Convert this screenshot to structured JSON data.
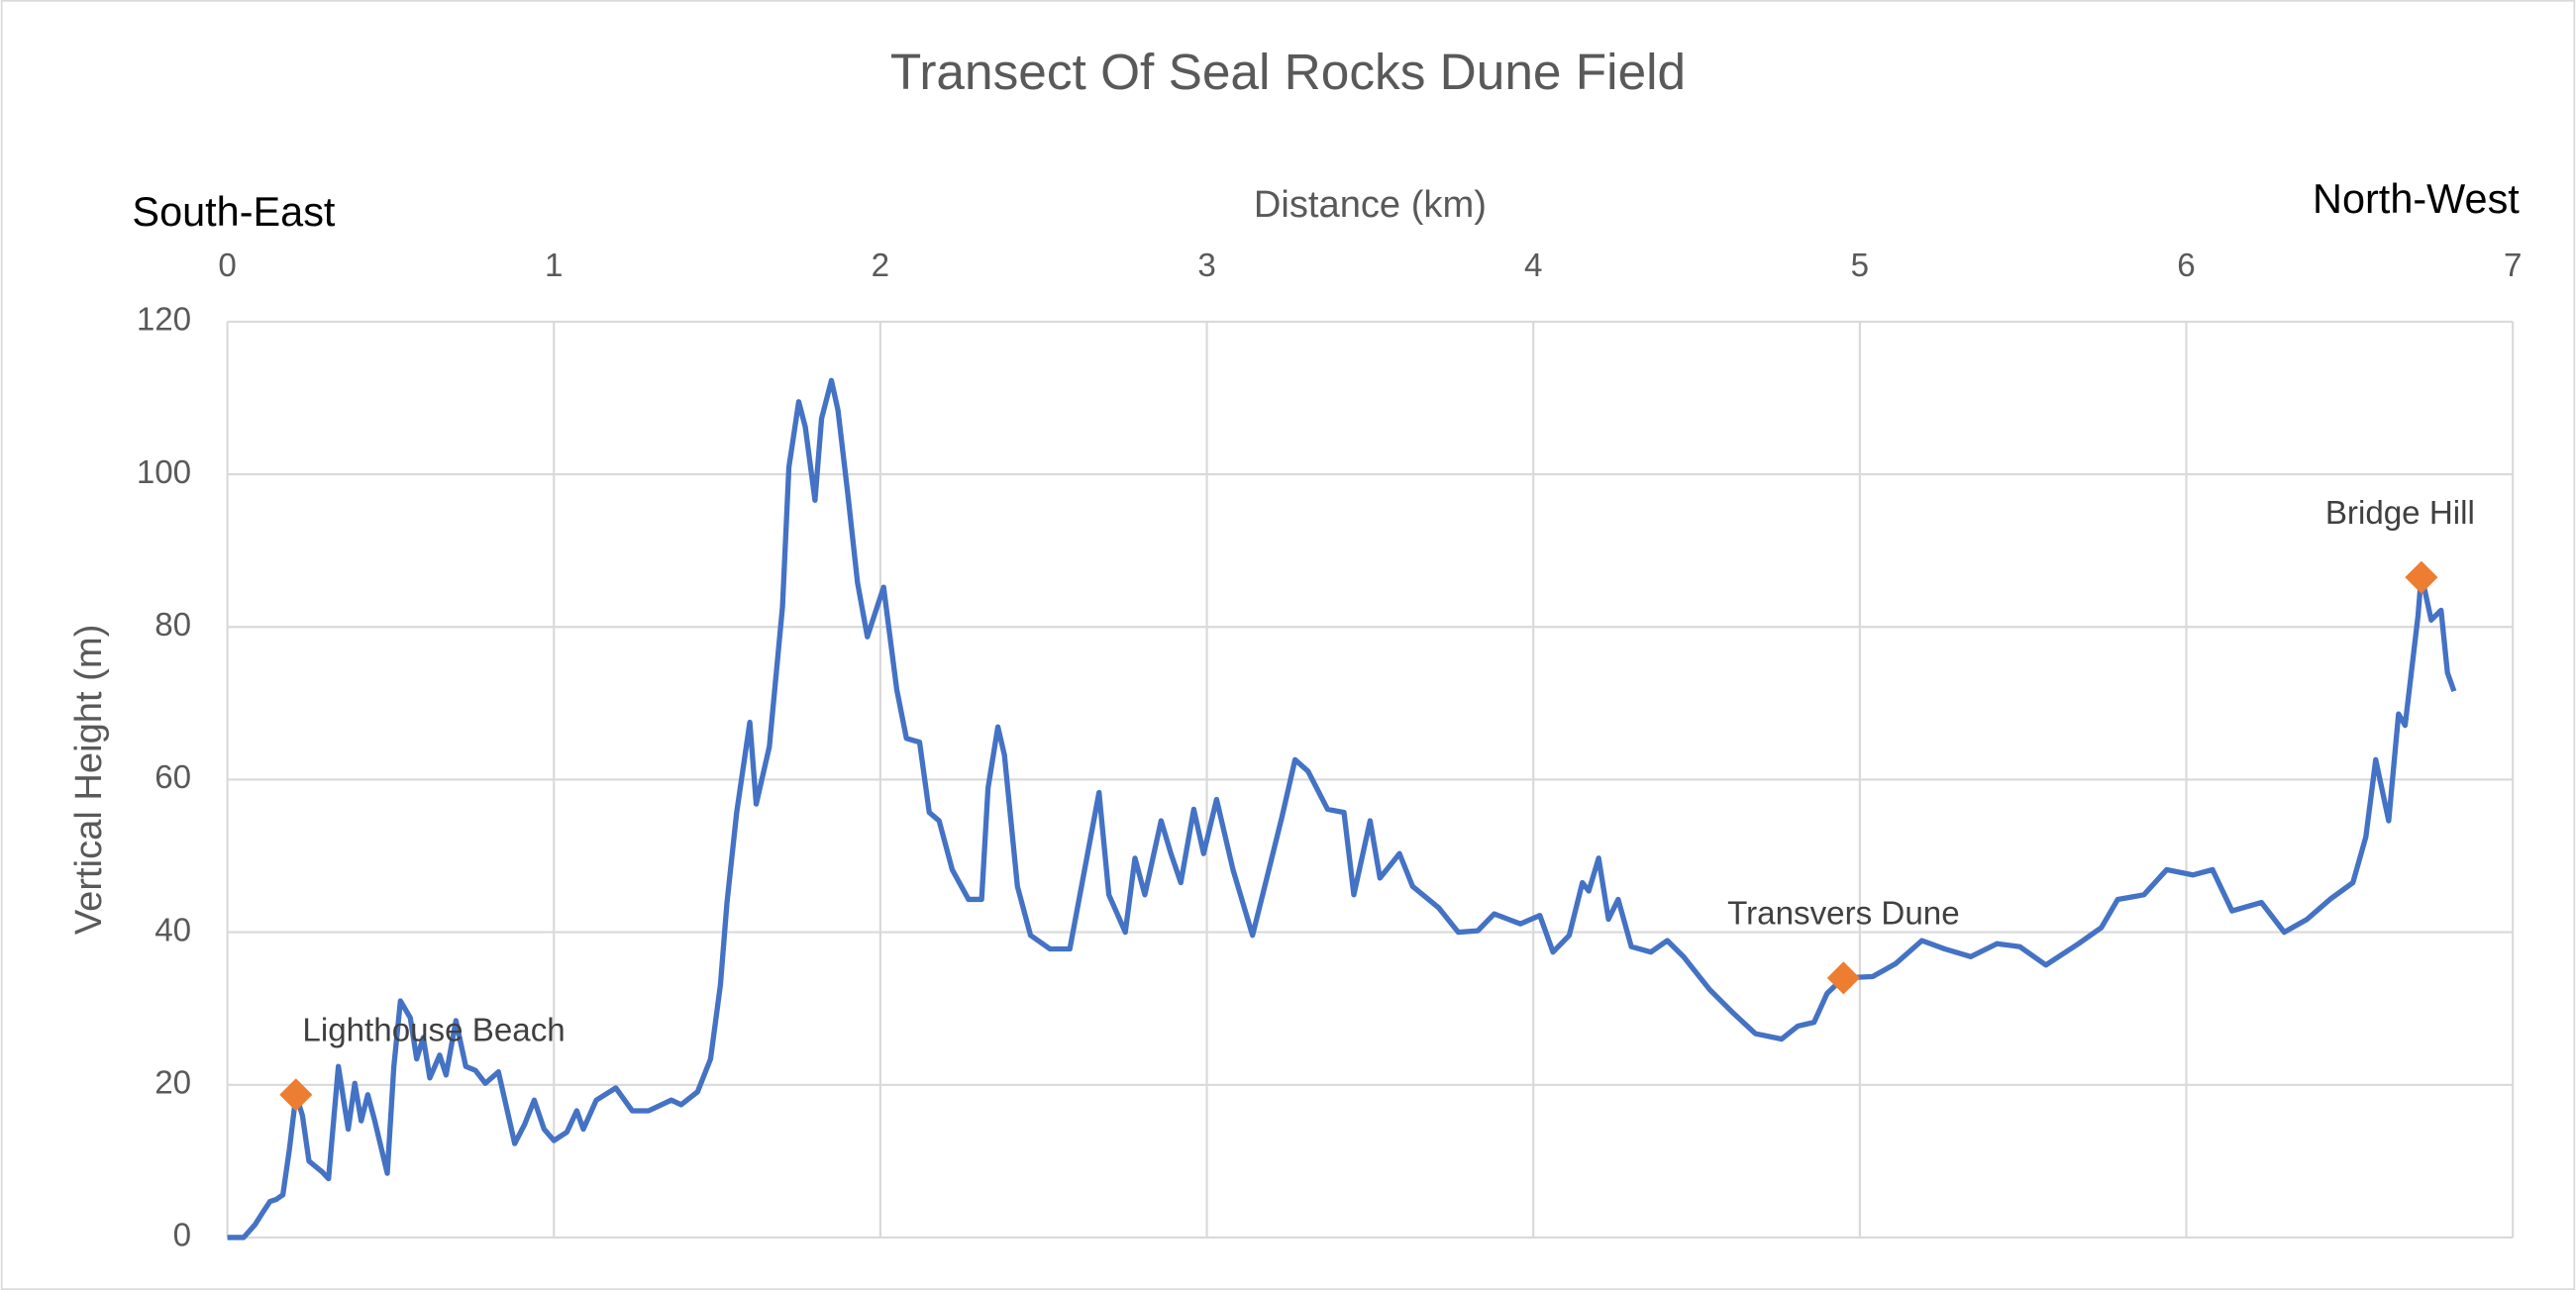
{
  "chart_data": {
    "type": "line",
    "title": "Transect Of Seal Rocks Dune Field",
    "xlabel": "Distance (km)",
    "ylabel": "Vertical Height (m)",
    "left_label": "South-East",
    "right_label": "North-West",
    "xlim": [
      0,
      7
    ],
    "xticks": [
      0,
      1,
      2,
      3,
      4,
      5,
      6,
      7
    ],
    "ylim": [
      0,
      120
    ],
    "yticks": [
      0,
      20,
      40,
      60,
      80,
      100,
      120
    ],
    "grid": true,
    "series": [
      {
        "color": "#4472c4",
        "x": [
          0,
          0.05,
          0.085,
          0.11,
          0.13,
          0.15,
          0.17,
          0.19,
          0.21,
          0.23,
          0.25,
          0.29,
          0.31,
          0.34,
          0.37,
          0.39,
          0.41,
          0.43,
          0.45,
          0.49,
          0.51,
          0.53,
          0.56,
          0.58,
          0.6,
          0.62,
          0.65,
          0.67,
          0.7,
          0.73,
          0.76,
          0.79,
          0.83,
          0.88,
          0.91,
          0.94,
          0.97,
          1.0,
          1.04,
          1.07,
          1.09,
          1.13,
          1.19,
          1.24,
          1.29,
          1.36,
          1.39,
          1.44,
          1.48,
          1.51,
          1.53,
          1.56,
          1.6,
          1.62,
          1.66,
          1.7,
          1.72,
          1.75,
          1.77,
          1.8,
          1.82,
          1.85,
          1.87,
          1.9,
          1.93,
          1.96,
          1.99,
          2.01,
          2.05,
          2.08,
          2.12,
          2.15,
          2.18,
          2.22,
          2.27,
          2.31,
          2.33,
          2.36,
          2.38,
          2.42,
          2.46,
          2.52,
          2.58,
          2.63,
          2.67,
          2.7,
          2.75,
          2.78,
          2.81,
          2.86,
          2.89,
          2.92,
          2.96,
          2.99,
          3.03,
          3.08,
          3.14,
          3.18,
          3.23,
          3.27,
          3.31,
          3.37,
          3.42,
          3.45,
          3.5,
          3.53,
          3.59,
          3.63,
          3.71,
          3.77,
          3.83,
          3.88,
          3.96,
          4.02,
          4.06,
          4.11,
          4.15,
          4.17,
          4.2,
          4.23,
          4.26,
          4.3,
          4.36,
          4.41,
          4.46,
          4.54,
          4.61,
          4.68,
          4.76,
          4.81,
          4.86,
          4.9,
          4.95,
          5.04,
          5.11,
          5.19,
          5.26,
          5.34,
          5.42,
          5.49,
          5.57,
          5.67,
          5.74,
          5.79,
          5.87,
          5.94,
          6.02,
          6.08,
          6.14,
          6.23,
          6.3,
          6.37,
          6.44,
          6.51,
          6.55,
          6.58,
          6.62,
          6.65,
          6.67,
          6.71,
          6.72,
          6.75,
          6.78,
          6.8,
          6.82
        ],
        "values": [
          0,
          0,
          1.7,
          3.4,
          4.7,
          5,
          5.6,
          11.6,
          18.7,
          16,
          10,
          8.6,
          7.7,
          22.4,
          14.2,
          20.2,
          15.3,
          18.7,
          15.5,
          8.4,
          22.4,
          31,
          28.8,
          23.4,
          26.2,
          20.9,
          23.9,
          21.3,
          28.4,
          22.4,
          21.9,
          20.2,
          21.7,
          12.3,
          14.8,
          18,
          14.2,
          12.7,
          13.8,
          16.6,
          14.2,
          18,
          19.6,
          16.6,
          16.6,
          18,
          17.4,
          19.1,
          23.4,
          33.1,
          43.9,
          55.7,
          67.5,
          56.8,
          64.3,
          82.6,
          100.9,
          109.5,
          106.2,
          96.6,
          107.3,
          112.3,
          108.4,
          97.6,
          85.8,
          78.7,
          82.6,
          85.2,
          71.8,
          65.4,
          64.9,
          55.7,
          54.6,
          48.2,
          44.3,
          44.3,
          58.9,
          66.9,
          63.2,
          46,
          39.6,
          37.8,
          37.8,
          49.2,
          58.3,
          44.9,
          40,
          49.7,
          44.9,
          54.6,
          50.3,
          46.5,
          56.1,
          50.3,
          57.4,
          48.2,
          39.6,
          46.5,
          55.1,
          62.6,
          61.1,
          56.1,
          55.7,
          44.9,
          54.6,
          47.1,
          50.3,
          46,
          43.2,
          40,
          40.2,
          42.4,
          41.1,
          42.2,
          37.4,
          39.6,
          46.5,
          45.4,
          49.7,
          41.7,
          44.3,
          38.1,
          37.4,
          38.9,
          36.8,
          32.5,
          29.5,
          26.7,
          26,
          27.7,
          28.2,
          32,
          34,
          34.2,
          35.9,
          38.9,
          37.8,
          36.8,
          38.5,
          38.1,
          35.7,
          38.5,
          40.6,
          44.3,
          44.9,
          48.2,
          47.5,
          48.2,
          42.8,
          43.9,
          40,
          41.7,
          44.3,
          46.5,
          52.5,
          62.6,
          54.6,
          68.6,
          67.1,
          81.5,
          86.9,
          80.9,
          82.2,
          74,
          71.6
        ]
      }
    ],
    "points": {
      "color": "#ed7d31",
      "x": [
        0.21,
        4.95,
        6.72
      ],
      "values": [
        18.7,
        34,
        86.5
      ],
      "labels": [
        "Lighthouse Beach",
        "Transvers Dune",
        "Bridge Hill"
      ]
    }
  }
}
